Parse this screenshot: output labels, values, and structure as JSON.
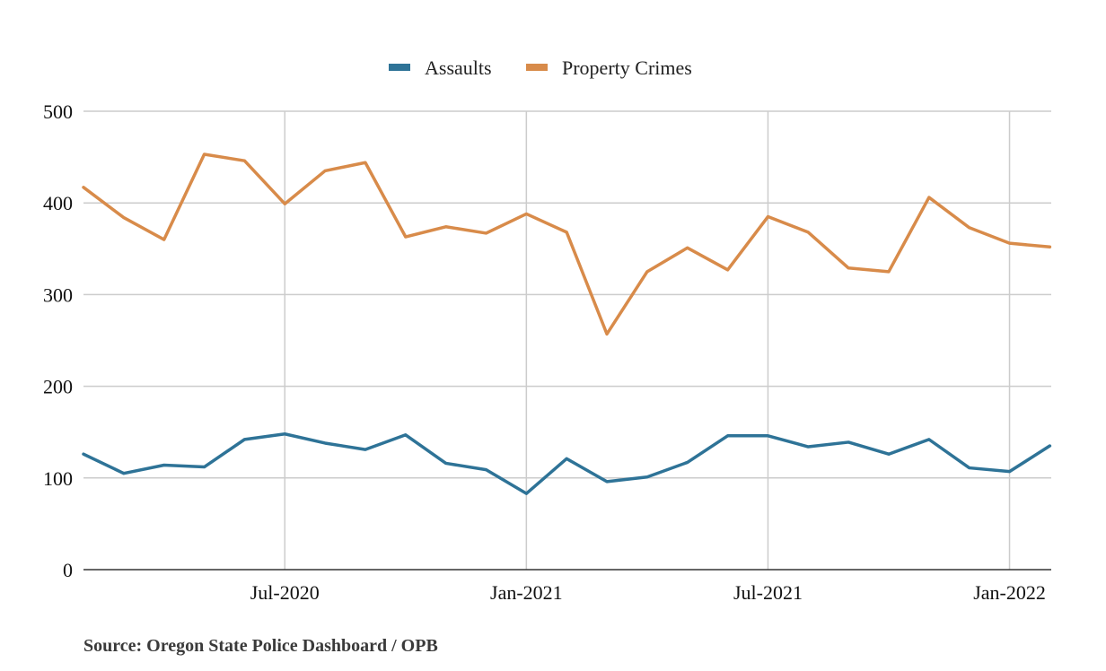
{
  "chart_data": {
    "type": "line",
    "title": "",
    "xlabel": "",
    "ylabel": "",
    "x": [
      "2020-02",
      "2020-03",
      "2020-04",
      "2020-05",
      "2020-06",
      "2020-07",
      "2020-08",
      "2020-09",
      "2020-10",
      "2020-11",
      "2020-12",
      "2021-01",
      "2021-02",
      "2021-03",
      "2021-04",
      "2021-05",
      "2021-06",
      "2021-07",
      "2021-08",
      "2021-09",
      "2021-10",
      "2021-11",
      "2021-12",
      "2022-01",
      "2022-02"
    ],
    "x_tick_labels": [
      "Jul-2020",
      "Jan-2021",
      "Jul-2021",
      "Jan-2022"
    ],
    "x_tick_values": [
      "2020-07",
      "2021-01",
      "2021-07",
      "2022-01"
    ],
    "y_ticks": [
      0,
      100,
      200,
      300,
      400,
      500
    ],
    "ylim": [
      0,
      500
    ],
    "grid": true,
    "legend_position": "top-center",
    "series": [
      {
        "name": "Assaults",
        "color": "#2e7397",
        "values": [
          126,
          105,
          114,
          112,
          142,
          148,
          138,
          131,
          147,
          116,
          109,
          83,
          121,
          96,
          101,
          117,
          146,
          146,
          134,
          139,
          126,
          142,
          111,
          107,
          135
        ]
      },
      {
        "name": "Property Crimes",
        "color": "#d88b4a",
        "values": [
          417,
          384,
          360,
          453,
          446,
          399,
          435,
          444,
          363,
          374,
          367,
          388,
          368,
          257,
          325,
          351,
          327,
          385,
          368,
          329,
          325,
          406,
          373,
          356,
          352
        ]
      }
    ]
  },
  "source": "Source: Oregon State Police Dashboard / OPB"
}
